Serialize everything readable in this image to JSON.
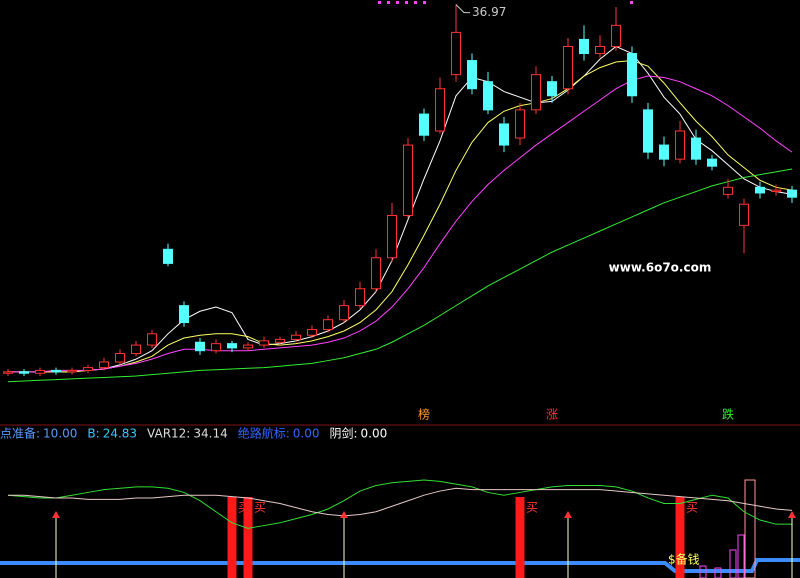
{
  "chart_data": [
    {
      "type": "candlestick",
      "ylim": [
        8.9,
        37.3
      ],
      "up_color": "#ff3232",
      "down_color": "#54ffff",
      "open": [
        10.8,
        10.9,
        10.8,
        11.0,
        10.9,
        11.0,
        11.2,
        11.6,
        12.2,
        12.8,
        19.6,
        15.6,
        13.0,
        12.4,
        12.9,
        12.6,
        12.8,
        13.0,
        13.2,
        13.5,
        13.9,
        14.6,
        15.6,
        16.8,
        19.0,
        22.0,
        29.2,
        28.0,
        32.0,
        33.0,
        31.5,
        28.5,
        27.5,
        29.5,
        31.5,
        31.0,
        34.5,
        33.5,
        34.0,
        33.5,
        29.5,
        27.0,
        26.0,
        27.5,
        26.0,
        23.5,
        21.3,
        24.0,
        23.7,
        23.8
      ],
      "high": [
        11.1,
        11.1,
        11.2,
        11.2,
        11.2,
        11.4,
        11.9,
        12.5,
        13.1,
        13.9,
        20.0,
        15.9,
        13.3,
        13.2,
        13.1,
        13.0,
        13.4,
        13.4,
        13.8,
        14.2,
        14.9,
        16.0,
        17.3,
        19.6,
        22.9,
        27.5,
        29.6,
        31.8,
        37.0,
        33.5,
        32.2,
        29.0,
        30.0,
        32.6,
        31.9,
        34.6,
        35.5,
        34.8,
        36.8,
        34.0,
        30.0,
        27.6,
        28.7,
        28.1,
        26.3,
        24.6,
        23.2,
        24.4,
        24.2,
        24.1
      ],
      "low": [
        10.6,
        10.6,
        10.6,
        10.7,
        10.7,
        10.8,
        11.0,
        11.4,
        12.0,
        12.6,
        18.4,
        14.1,
        12.1,
        12.2,
        12.3,
        12.4,
        12.6,
        12.8,
        13.0,
        13.3,
        13.7,
        14.4,
        15.4,
        16.6,
        18.7,
        21.8,
        27.3,
        27.8,
        31.5,
        30.6,
        29.2,
        26.5,
        27.0,
        29.2,
        30.0,
        30.6,
        33.0,
        33.2,
        33.7,
        30.0,
        26.0,
        25.5,
        25.7,
        25.6,
        25.2,
        23.2,
        19.3,
        23.2,
        23.4,
        22.9
      ],
      "close": [
        10.9,
        10.8,
        11.0,
        10.9,
        11.0,
        11.2,
        11.6,
        12.2,
        12.8,
        13.6,
        18.6,
        14.4,
        12.4,
        12.9,
        12.6,
        12.8,
        13.1,
        13.2,
        13.5,
        13.9,
        14.6,
        15.6,
        16.8,
        19.0,
        22.0,
        27.0,
        27.7,
        31.0,
        35.0,
        31.0,
        29.5,
        27.0,
        29.5,
        32.0,
        30.5,
        34.0,
        33.5,
        34.0,
        35.5,
        30.5,
        26.5,
        26.0,
        28.0,
        26.0,
        25.5,
        24.0,
        22.8,
        23.6,
        23.8,
        23.3
      ],
      "series": [
        {
          "color": "#ffffff",
          "values": [
            10.9,
            10.9,
            10.9,
            10.9,
            10.9,
            11.0,
            11.1,
            11.4,
            11.8,
            12.4,
            13.6,
            14.6,
            15.2,
            15.5,
            15.1,
            13.2,
            12.8,
            12.9,
            13.1,
            13.4,
            13.8,
            14.4,
            15.3,
            16.6,
            18.8,
            21.7,
            24.6,
            27.3,
            30.5,
            31.8,
            31.5,
            30.8,
            30.4,
            30.0,
            30.1,
            30.9,
            31.9,
            33.1,
            34.0,
            33.5,
            32.1,
            30.4,
            29.2,
            27.4,
            26.6,
            25.6,
            24.6,
            24.0,
            23.7,
            23.5
          ]
        },
        {
          "color": "#ffff66",
          "values": [
            10.9,
            10.9,
            10.9,
            10.9,
            10.9,
            11.0,
            11.1,
            11.3,
            11.6,
            12.0,
            12.8,
            13.3,
            13.5,
            13.6,
            13.6,
            13.4,
            12.9,
            12.8,
            12.9,
            13.1,
            13.4,
            13.8,
            14.4,
            15.3,
            16.6,
            18.5,
            20.6,
            22.8,
            25.2,
            27.2,
            28.6,
            29.4,
            29.8,
            30.0,
            30.3,
            31.0,
            31.9,
            32.5,
            32.9,
            33.0,
            32.6,
            31.4,
            30.0,
            28.7,
            27.6,
            26.3,
            25.4,
            24.5,
            24.0,
            23.8
          ]
        },
        {
          "color": "#ff44ff",
          "values": [
            10.9,
            10.9,
            10.9,
            11.0,
            11.0,
            11.0,
            11.1,
            11.3,
            11.5,
            11.8,
            12.2,
            12.5,
            12.5,
            12.4,
            12.4,
            12.4,
            12.5,
            12.6,
            12.7,
            12.8,
            13.0,
            13.3,
            13.8,
            14.5,
            15.5,
            16.8,
            18.3,
            20.0,
            21.6,
            23.0,
            24.2,
            25.2,
            26.1,
            27.0,
            27.8,
            28.6,
            29.4,
            30.2,
            31.0,
            31.6,
            31.9,
            31.8,
            31.5,
            31.0,
            30.5,
            29.8,
            29.0,
            28.2,
            27.3,
            26.5
          ]
        },
        {
          "color": "#33ee33",
          "values": [
            10.2,
            10.25,
            10.3,
            10.35,
            10.4,
            10.45,
            10.5,
            10.55,
            10.6,
            10.7,
            10.8,
            10.9,
            11.0,
            11.05,
            11.1,
            11.15,
            11.2,
            11.3,
            11.4,
            11.5,
            11.7,
            11.9,
            12.2,
            12.5,
            13.0,
            13.6,
            14.2,
            14.9,
            15.6,
            16.3,
            17.0,
            17.6,
            18.2,
            18.8,
            19.4,
            19.9,
            20.4,
            20.9,
            21.4,
            21.9,
            22.4,
            22.9,
            23.3,
            23.7,
            24.1,
            24.4,
            24.7,
            24.9,
            25.1,
            25.3
          ]
        }
      ],
      "peak": 36.97,
      "markers": [
        {
          "index": 26,
          "label": "榜",
          "color": "#ff9933"
        },
        {
          "index": 34,
          "label": "涨",
          "color": "#ff3232"
        },
        {
          "index": 45,
          "label": "跌",
          "color": "#33ee33"
        }
      ],
      "watermark": "www.6o7o.com"
    },
    {
      "type": "indicator",
      "ylim": [
        0,
        100
      ],
      "header": [
        {
          "name": "点准备:",
          "value": 10,
          "value_label": "10.00",
          "color": "#5599ff"
        },
        {
          "name": "B:",
          "value": 24.83,
          "color": "#33ccff"
        },
        {
          "name": "VAR12:",
          "value": 34.14,
          "color": "#dddddd"
        },
        {
          "name": "绝路航标:",
          "value": 0,
          "value_label": "0.00",
          "color": "#3366ff"
        },
        {
          "name": "阴剑:",
          "value": 0,
          "value_label": "0.00",
          "color": "#ffffff"
        }
      ],
      "series": [
        {
          "color": "#33dd33",
          "values": [
            60,
            59,
            58,
            58,
            60,
            62,
            64,
            65,
            66,
            66,
            65,
            62,
            56,
            48,
            40,
            36,
            38,
            40,
            43,
            46,
            50,
            56,
            63,
            67,
            69,
            70,
            71,
            70,
            68,
            66,
            62,
            60,
            62,
            64,
            66,
            67,
            67,
            67,
            66,
            63,
            58,
            54,
            54,
            57,
            60,
            58,
            48,
            42,
            39,
            39
          ]
        },
        {
          "color": "#e8c8c8",
          "values": [
            60,
            60,
            59,
            58,
            58,
            57,
            57,
            57,
            58,
            58,
            59,
            60,
            60,
            60,
            59,
            58,
            56,
            54,
            51,
            48,
            46,
            45,
            46,
            48,
            52,
            56,
            60,
            63,
            65,
            64,
            64,
            64,
            64,
            64,
            64,
            64,
            64,
            64,
            63,
            62,
            61,
            60,
            59,
            58,
            57,
            56,
            54,
            52,
            50,
            49
          ]
        }
      ],
      "buy_indices": [
        14,
        15,
        32,
        42
      ],
      "buy_labels": [
        "买",
        "买",
        "买",
        "买"
      ],
      "arrow_indices": [
        3,
        21,
        35,
        49
      ],
      "note": "$备钱"
    }
  ]
}
